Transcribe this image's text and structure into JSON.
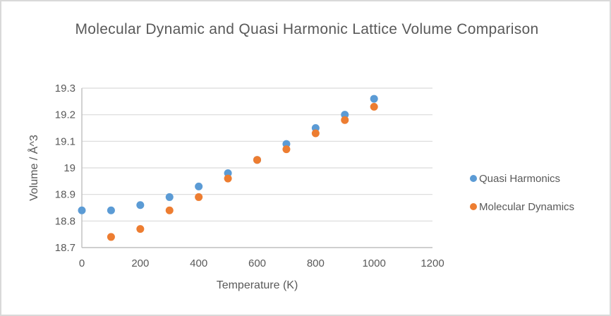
{
  "title": "Molecular Dynamic and Quasi Harmonic Lattice Volume Comparison",
  "colors": {
    "series_quasi_harmonics": "#5B9BD5",
    "series_molecular_dynamics": "#ED7D31",
    "text": "#595959",
    "gridline": "#D9D9D9",
    "axis_line": "#BFBFBF",
    "frame_border": "#D9D9D9",
    "background": "#FFFFFF"
  },
  "legend": {
    "position": "right",
    "items": [
      {
        "label": "Quasi Harmonics",
        "color": "#5B9BD5",
        "marker": "circle"
      },
      {
        "label": "Molecular Dynamics",
        "color": "#ED7D31",
        "marker": "circle"
      }
    ]
  },
  "chart_data": {
    "type": "scatter",
    "title": "Molecular Dynamic and Quasi Harmonic Lattice Volume Comparison",
    "xlabel": "Temperature (K)",
    "ylabel": "Volume / Å^3",
    "grid": "horizontal",
    "legend_position": "right",
    "x_axis": {
      "min": 0,
      "max": 1200,
      "ticks": [
        {
          "value": 0,
          "label": "0"
        },
        {
          "value": 200,
          "label": "200"
        },
        {
          "value": 400,
          "label": "400"
        },
        {
          "value": 600,
          "label": "600"
        },
        {
          "value": 800,
          "label": "800"
        },
        {
          "value": 1000,
          "label": "1000"
        },
        {
          "value": 1200,
          "label": "1200"
        }
      ]
    },
    "y_axis": {
      "min": 18.7,
      "max": 19.3,
      "ticks": [
        {
          "value": 18.7,
          "label": "18.7"
        },
        {
          "value": 18.8,
          "label": "18.8"
        },
        {
          "value": 18.9,
          "label": "18.9"
        },
        {
          "value": 19.0,
          "label": "19"
        },
        {
          "value": 19.1,
          "label": "19.1"
        },
        {
          "value": 19.2,
          "label": "19.2"
        },
        {
          "value": 19.3,
          "label": "19.3"
        }
      ]
    },
    "series": [
      {
        "name": "Quasi Harmonics",
        "color": "#5B9BD5",
        "marker": "circle",
        "points": [
          {
            "x": 0,
            "y": 18.84
          },
          {
            "x": 100,
            "y": 18.84
          },
          {
            "x": 200,
            "y": 18.86
          },
          {
            "x": 300,
            "y": 18.89
          },
          {
            "x": 400,
            "y": 18.93
          },
          {
            "x": 500,
            "y": 18.98
          },
          {
            "x": 600,
            "y": 19.03
          },
          {
            "x": 700,
            "y": 19.09
          },
          {
            "x": 800,
            "y": 19.15
          },
          {
            "x": 900,
            "y": 19.2
          },
          {
            "x": 1000,
            "y": 19.26
          }
        ]
      },
      {
        "name": "Molecular Dynamics",
        "color": "#ED7D31",
        "marker": "circle",
        "points": [
          {
            "x": 100,
            "y": 18.74
          },
          {
            "x": 200,
            "y": 18.77
          },
          {
            "x": 300,
            "y": 18.84
          },
          {
            "x": 400,
            "y": 18.89
          },
          {
            "x": 500,
            "y": 18.96
          },
          {
            "x": 600,
            "y": 19.03
          },
          {
            "x": 700,
            "y": 19.07
          },
          {
            "x": 800,
            "y": 19.13
          },
          {
            "x": 900,
            "y": 19.18
          },
          {
            "x": 1000,
            "y": 19.23
          }
        ]
      }
    ]
  }
}
